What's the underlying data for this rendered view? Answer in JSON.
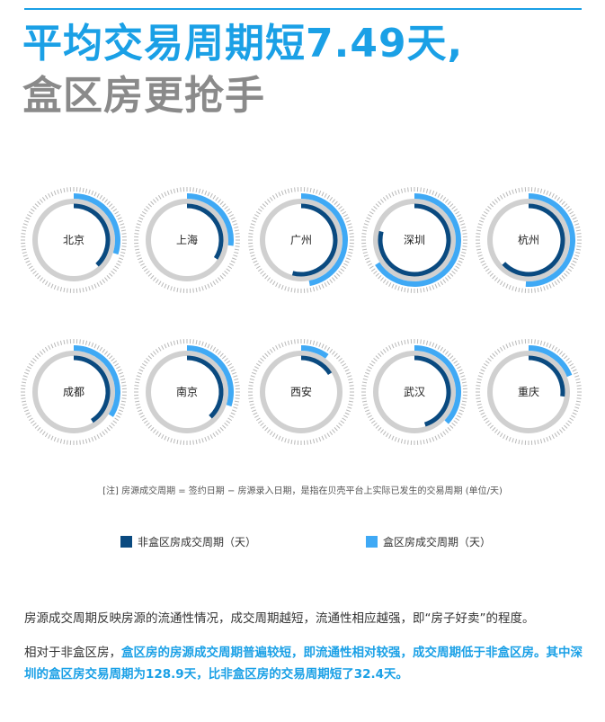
{
  "title": {
    "line1": "平均交易周期短7.49天,",
    "line2": "盒区房更抢手"
  },
  "note": "[注] 房源成交周期 = 签约日期 − 房源录入日期，是指在贝壳平台上实际已发生的交易周期 (单位/天)",
  "legend": [
    {
      "label": "非盒区房成交周期（天）",
      "color": "#0a4a80"
    },
    {
      "label": "盒区房成交周期（天）",
      "color": "#3fa9f5"
    }
  ],
  "paragraph1": "房源成交周期反映房源的流通性情况，成交周期越短，流通性相应越强，即“房子好卖”的程度。",
  "paragraph2": {
    "normal": "相对于非盒区房，",
    "highlight": "盒区房的房源成交周期普遍较短，即流通性相对较强，成交周期低于非盒区房。其中深圳的盒区房交易周期为128.9天，比非盒区房的交易周期短了32.4天。"
  },
  "colors": {
    "outer_arc": "#3fa9f5",
    "inner_arc": "#0a4a80",
    "track": "#d0d0d0",
    "ticks": "#b8b8b8"
  },
  "chart_data": {
    "type": "radial-bar",
    "unit": "天",
    "series_names": [
      "非盒区房成交周期（天）",
      "盒区房成交周期（天）"
    ],
    "cities": [
      {
        "name": "北京",
        "non_box_fraction": 0.38,
        "box_fraction": 0.3
      },
      {
        "name": "上海",
        "non_box_fraction": 0.34,
        "box_fraction": 0.27
      },
      {
        "name": "广州",
        "non_box_fraction": 0.54,
        "box_fraction": 0.47
      },
      {
        "name": "深圳",
        "non_box_fraction": 0.79,
        "box_fraction": 0.66
      },
      {
        "name": "杭州",
        "non_box_fraction": 0.63,
        "box_fraction": 0.51
      },
      {
        "name": "成都",
        "non_box_fraction": 0.41,
        "box_fraction": 0.34
      },
      {
        "name": "南京",
        "non_box_fraction": 0.38,
        "box_fraction": 0.3
      },
      {
        "name": "西安",
        "non_box_fraction": 0.16,
        "box_fraction": 0.1
      },
      {
        "name": "武汉",
        "non_box_fraction": 0.45,
        "box_fraction": 0.37
      },
      {
        "name": "重庆",
        "non_box_fraction": 0.27,
        "box_fraction": 0.19
      }
    ]
  }
}
